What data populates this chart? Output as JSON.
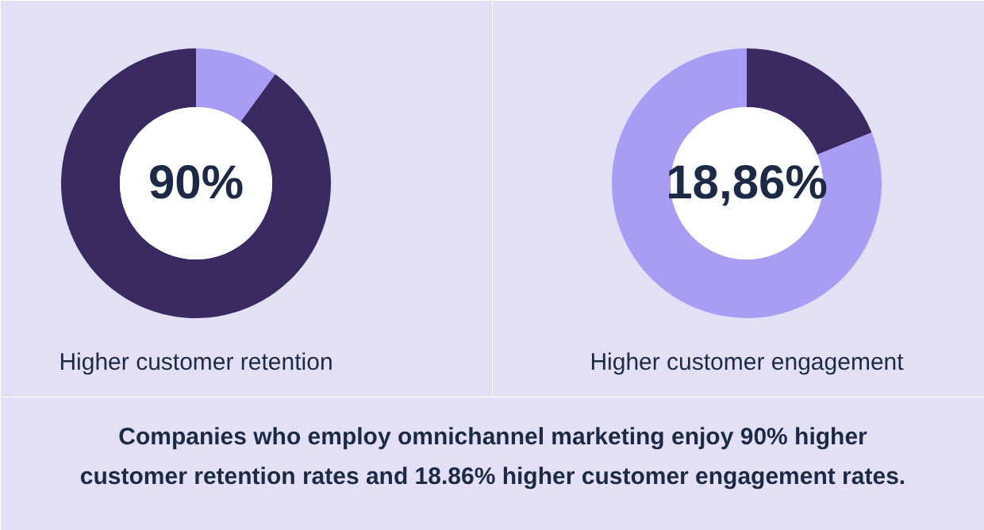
{
  "chart_data": [
    {
      "type": "donut",
      "xlabel": "Higher customer retention",
      "categories": [
        null,
        null
      ],
      "values": [
        10,
        90
      ],
      "colors": [
        "#a99cf5",
        "#3a2a62"
      ],
      "annotations": [
        "90%"
      ]
    },
    {
      "type": "donut",
      "xlabel": "Higher customer engagement",
      "categories": [
        null,
        null
      ],
      "values": [
        18.86,
        81.14
      ],
      "colors": [
        "#3a2a62",
        "#a99cf5"
      ],
      "annotations": [
        "18,86%"
      ]
    },
    {
      "type": "other",
      "annotations": [
        "Companies who employ omnichannel marketing enjoy 90% higher",
        "customer retention rates and 18.86% higher customer engagement rates."
      ]
    }
  ]
}
